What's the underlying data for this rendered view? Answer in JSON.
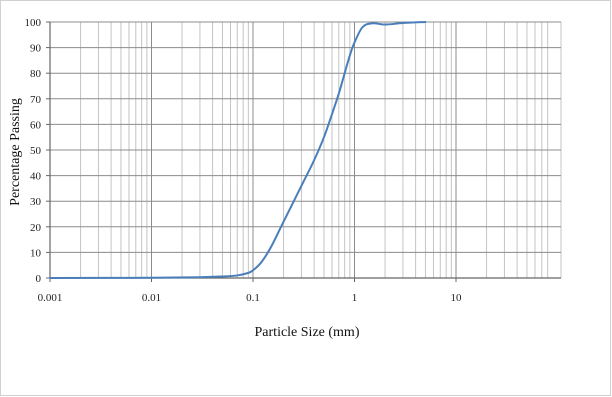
{
  "chart_data": {
    "type": "line",
    "title": "",
    "xlabel": "Particle Size (mm)",
    "ylabel": "Percentage Passing",
    "xscale": "log",
    "xlim": [
      0.001,
      80
    ],
    "ylim": [
      0,
      100
    ],
    "grid": true,
    "legend": "none",
    "x_tick_labels": [
      "0.001",
      "0.01",
      "0.1",
      "1",
      "10"
    ],
    "x_tick_values": [
      0.001,
      0.01,
      0.1,
      1,
      10
    ],
    "y_tick_labels": [
      "0",
      "10",
      "20",
      "30",
      "40",
      "50",
      "60",
      "70",
      "80",
      "90",
      "100"
    ],
    "y_tick_values": [
      0,
      10,
      20,
      30,
      40,
      50,
      60,
      70,
      80,
      90,
      100
    ],
    "series": [
      {
        "color": "#4a7ebb",
        "x": [
          0.001,
          0.01,
          0.03,
          0.05,
          0.07,
          0.09,
          0.1,
          0.12,
          0.15,
          0.2,
          0.3,
          0.4,
          0.5,
          0.6,
          0.7,
          0.8,
          0.9,
          1.0,
          1.2,
          1.5,
          2.0,
          3.0,
          5.0
        ],
        "y": [
          0,
          0.1,
          0.3,
          0.6,
          1.0,
          2.0,
          3.0,
          6.0,
          12.0,
          22.0,
          36.0,
          46.0,
          55.0,
          64.0,
          72.0,
          80.0,
          87.0,
          92.0,
          98.0,
          99.5,
          99.0,
          99.6,
          100.0
        ]
      }
    ]
  }
}
